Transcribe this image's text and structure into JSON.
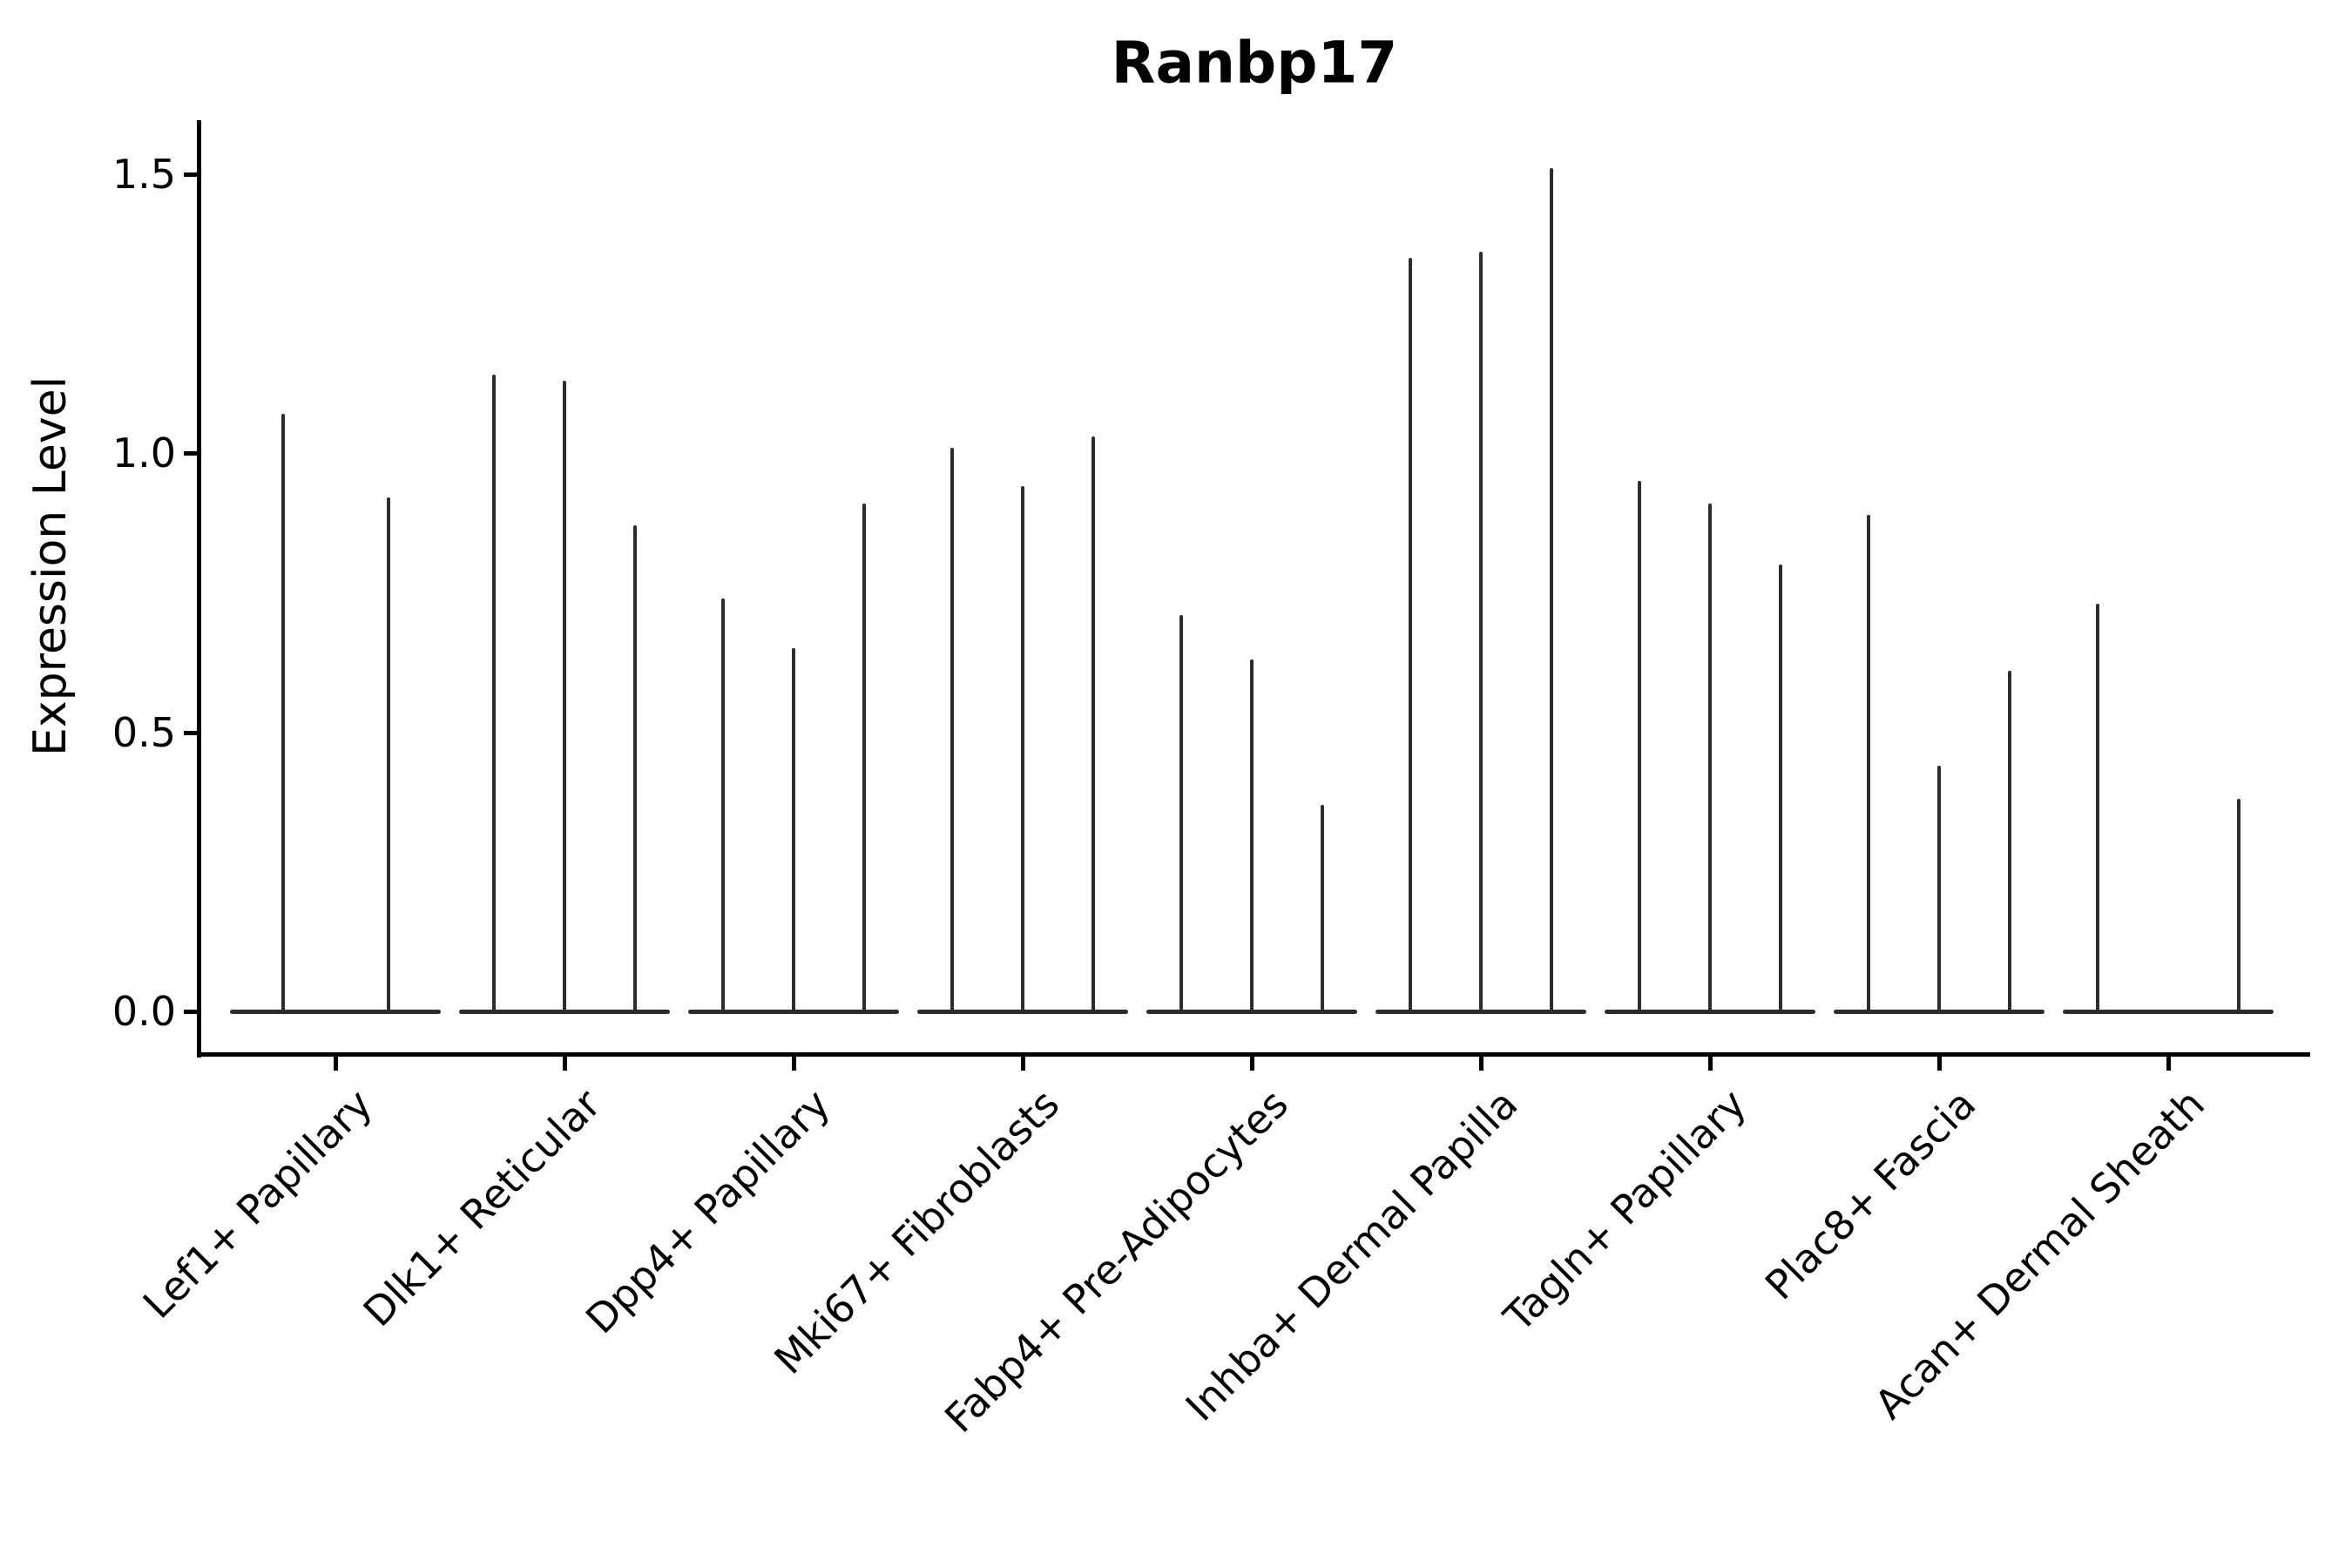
{
  "title": "Ranbp17",
  "y_axis": {
    "label": "Expression Level",
    "tick_labels": [
      "0.0",
      "0.5",
      "1.0",
      "1.5"
    ]
  },
  "colors": {
    "violin": "#2d2d2d",
    "axis": "#000000",
    "text": "#000000"
  },
  "chart_data": {
    "type": "violin",
    "title": "Ranbp17",
    "ylabel": "Expression Level",
    "xlabel": "",
    "ylim": [
      -0.07,
      1.59
    ],
    "yticks": [
      0.0,
      0.5,
      1.0,
      1.5
    ],
    "ytick_labels": [
      "0.0",
      "0.5",
      "1.0",
      "1.5"
    ],
    "grid": false,
    "legend": "none",
    "categories": [
      {
        "label": "Lef1+ Papillary",
        "violins": [
          {
            "pos": 0.25,
            "peak": 1.07
          },
          {
            "pos": 0.75,
            "peak": 0.92
          }
        ]
      },
      {
        "label": "Dlk1+ Reticular",
        "violins": [
          {
            "pos": 0.1667,
            "peak": 1.14
          },
          {
            "pos": 0.5,
            "peak": 1.13
          },
          {
            "pos": 0.8333,
            "peak": 0.87
          }
        ]
      },
      {
        "label": "Dpp4+ Papillary",
        "violins": [
          {
            "pos": 0.1667,
            "peak": 0.74
          },
          {
            "pos": 0.5,
            "peak": 0.65
          },
          {
            "pos": 0.8333,
            "peak": 0.91
          }
        ]
      },
      {
        "label": "Mki67+ Fibroblasts",
        "violins": [
          {
            "pos": 0.1667,
            "peak": 1.01
          },
          {
            "pos": 0.5,
            "peak": 0.94
          },
          {
            "pos": 0.8333,
            "peak": 1.03
          }
        ]
      },
      {
        "label": "Fabp4+ Pre-Adipocytes",
        "violins": [
          {
            "pos": 0.1667,
            "peak": 0.71
          },
          {
            "pos": 0.5,
            "peak": 0.63
          },
          {
            "pos": 0.8333,
            "peak": 0.37
          }
        ]
      },
      {
        "label": "Inhba+ Dermal Papilla",
        "violins": [
          {
            "pos": 0.1667,
            "peak": 1.35
          },
          {
            "pos": 0.5,
            "peak": 1.36
          },
          {
            "pos": 0.8333,
            "peak": 1.51
          }
        ]
      },
      {
        "label": "Tagln+ Papillary",
        "violins": [
          {
            "pos": 0.1667,
            "peak": 0.95
          },
          {
            "pos": 0.5,
            "peak": 0.91
          },
          {
            "pos": 0.8333,
            "peak": 0.8
          }
        ]
      },
      {
        "label": "Plac8+ Fascia",
        "violins": [
          {
            "pos": 0.1667,
            "peak": 0.89
          },
          {
            "pos": 0.5,
            "peak": 0.44
          },
          {
            "pos": 0.8333,
            "peak": 0.61
          }
        ]
      },
      {
        "label": "Acan+ Dermal Sheath",
        "violins": [
          {
            "pos": 0.1667,
            "peak": 0.73
          },
          {
            "pos": 0.5,
            "peak": 0.0
          },
          {
            "pos": 0.8333,
            "peak": 0.38
          }
        ]
      }
    ]
  }
}
